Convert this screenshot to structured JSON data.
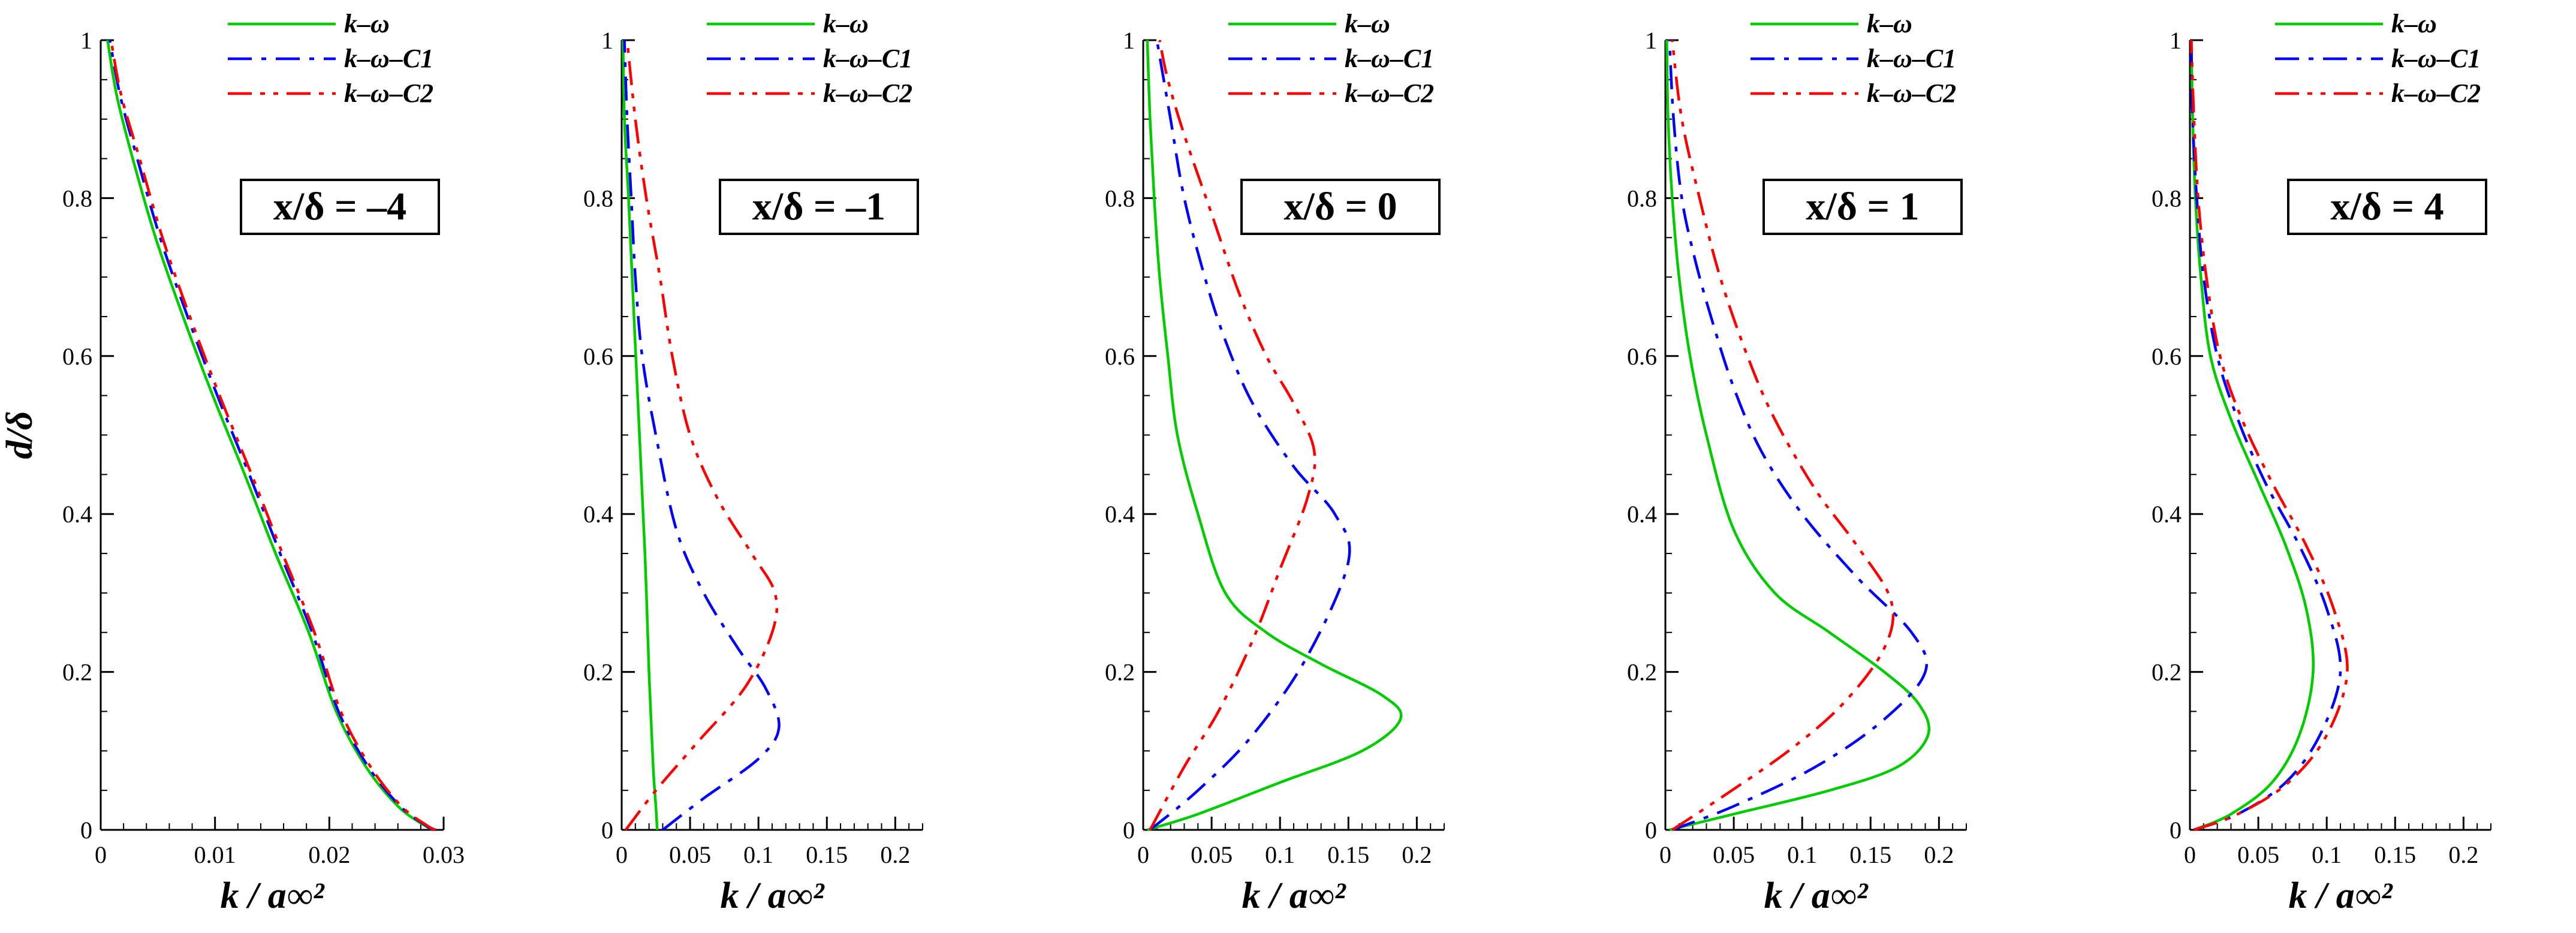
{
  "chart_data": [
    {
      "type": "line",
      "annotation": "x/δ = –4",
      "xlabel": "k / a∞²",
      "ylabel": "d/δ",
      "xlim": [
        0,
        0.03
      ],
      "ylim": [
        0,
        1
      ],
      "xticks": [
        0,
        0.01,
        0.02,
        0.03
      ],
      "xtick_labels": [
        "0",
        "0.01",
        "0.02",
        "0.03"
      ],
      "yticks": [
        0,
        0.2,
        0.4,
        0.6,
        0.8,
        1
      ],
      "ytick_labels": [
        "0",
        "0.2",
        "0.4",
        "0.6",
        "0.8",
        "1"
      ],
      "legend_position": "top-right",
      "series": [
        {
          "name": "k–ω",
          "color": "#00cc00",
          "dash": "solid",
          "points": [
            [
              0.0292,
              0
            ],
            [
              0.0284,
              0.005
            ],
            [
              0.026,
              0.03
            ],
            [
              0.0232,
              0.08
            ],
            [
              0.0206,
              0.15
            ],
            [
              0.0182,
              0.25
            ],
            [
              0.0153,
              0.35
            ],
            [
              0.0126,
              0.45
            ],
            [
              0.0098,
              0.55
            ],
            [
              0.0072,
              0.65
            ],
            [
              0.0048,
              0.75
            ],
            [
              0.0028,
              0.85
            ],
            [
              0.0014,
              0.93
            ],
            [
              0.0006,
              1
            ]
          ]
        },
        {
          "name": "k–ω–C1",
          "color": "#0000ff",
          "dash": "dashdot",
          "points": [
            [
              0.0292,
              0
            ],
            [
              0.0285,
              0.005
            ],
            [
              0.0262,
              0.03
            ],
            [
              0.0234,
              0.08
            ],
            [
              0.0208,
              0.15
            ],
            [
              0.0185,
              0.25
            ],
            [
              0.0157,
              0.35
            ],
            [
              0.013,
              0.45
            ],
            [
              0.0102,
              0.55
            ],
            [
              0.0076,
              0.65
            ],
            [
              0.0052,
              0.75
            ],
            [
              0.0032,
              0.85
            ],
            [
              0.0017,
              0.93
            ],
            [
              0.0008,
              1
            ]
          ]
        },
        {
          "name": "k–ω–C2",
          "color": "#ff0000",
          "dash": "dashdotdot",
          "points": [
            [
              0.0293,
              0
            ],
            [
              0.0286,
              0.005
            ],
            [
              0.0263,
              0.03
            ],
            [
              0.0236,
              0.08
            ],
            [
              0.021,
              0.15
            ],
            [
              0.0187,
              0.25
            ],
            [
              0.0159,
              0.35
            ],
            [
              0.0132,
              0.45
            ],
            [
              0.0104,
              0.55
            ],
            [
              0.0078,
              0.65
            ],
            [
              0.0054,
              0.75
            ],
            [
              0.0034,
              0.85
            ],
            [
              0.0018,
              0.93
            ],
            [
              0.0009,
              1
            ]
          ]
        }
      ]
    },
    {
      "type": "line",
      "annotation": "x/δ = –1",
      "xlabel": "k / a∞²",
      "ylabel": "",
      "xlim": [
        0,
        0.22
      ],
      "ylim": [
        0,
        1
      ],
      "xticks": [
        0,
        0.05,
        0.1,
        0.15,
        0.2
      ],
      "xtick_labels": [
        "0",
        "0.05",
        "0.1",
        "0.15",
        "0.2"
      ],
      "yticks": [
        0,
        0.2,
        0.4,
        0.6,
        0.8,
        1
      ],
      "ytick_labels": [
        "0",
        "0.2",
        "0.4",
        "0.6",
        "0.8",
        "1"
      ],
      "legend_position": "top-right",
      "series": [
        {
          "name": "k–ω",
          "color": "#00cc00",
          "dash": "solid",
          "points": [
            [
              0.026,
              0
            ],
            [
              0.025,
              0.03
            ],
            [
              0.023,
              0.08
            ],
            [
              0.02,
              0.2
            ],
            [
              0.017,
              0.35
            ],
            [
              0.013,
              0.5
            ],
            [
              0.009,
              0.65
            ],
            [
              0.005,
              0.8
            ],
            [
              0.002,
              0.9
            ],
            [
              0.001,
              1
            ]
          ]
        },
        {
          "name": "k–ω–C1",
          "color": "#0000ff",
          "dash": "dashdot",
          "points": [
            [
              0.03,
              0
            ],
            [
              0.06,
              0.04
            ],
            [
              0.1,
              0.09
            ],
            [
              0.115,
              0.13
            ],
            [
              0.105,
              0.18
            ],
            [
              0.085,
              0.23
            ],
            [
              0.06,
              0.3
            ],
            [
              0.04,
              0.38
            ],
            [
              0.025,
              0.5
            ],
            [
              0.015,
              0.6
            ],
            [
              0.01,
              0.7
            ],
            [
              0.007,
              0.8
            ],
            [
              0.004,
              0.9
            ],
            [
              0.002,
              1
            ]
          ]
        },
        {
          "name": "k–ω–C2",
          "color": "#ff0000",
          "dash": "dashdotdot",
          "points": [
            [
              0.003,
              0
            ],
            [
              0.025,
              0.05
            ],
            [
              0.055,
              0.11
            ],
            [
              0.09,
              0.18
            ],
            [
              0.11,
              0.25
            ],
            [
              0.112,
              0.3
            ],
            [
              0.095,
              0.35
            ],
            [
              0.07,
              0.42
            ],
            [
              0.05,
              0.5
            ],
            [
              0.037,
              0.6
            ],
            [
              0.028,
              0.7
            ],
            [
              0.018,
              0.8
            ],
            [
              0.01,
              0.9
            ],
            [
              0.004,
              1
            ]
          ]
        }
      ]
    },
    {
      "type": "line",
      "annotation": "x/δ = 0",
      "xlabel": "k / a∞²",
      "ylabel": "",
      "xlim": [
        0,
        0.22
      ],
      "ylim": [
        0,
        1
      ],
      "xticks": [
        0,
        0.05,
        0.1,
        0.15,
        0.2
      ],
      "xtick_labels": [
        "0",
        "0.05",
        "0.1",
        "0.15",
        "0.2"
      ],
      "yticks": [
        0,
        0.2,
        0.4,
        0.6,
        0.8,
        1
      ],
      "ytick_labels": [
        "0",
        "0.2",
        "0.4",
        "0.6",
        "0.8",
        "1"
      ],
      "legend_position": "top-right",
      "series": [
        {
          "name": "k–ω",
          "color": "#00cc00",
          "dash": "solid",
          "points": [
            [
              0.003,
              0
            ],
            [
              0.04,
              0.02
            ],
            [
              0.1,
              0.06
            ],
            [
              0.16,
              0.1
            ],
            [
              0.188,
              0.14
            ],
            [
              0.175,
              0.17
            ],
            [
              0.13,
              0.21
            ],
            [
              0.09,
              0.25
            ],
            [
              0.06,
              0.3
            ],
            [
              0.04,
              0.4
            ],
            [
              0.025,
              0.5
            ],
            [
              0.018,
              0.6
            ],
            [
              0.012,
              0.7
            ],
            [
              0.008,
              0.8
            ],
            [
              0.005,
              0.9
            ],
            [
              0.003,
              1
            ]
          ]
        },
        {
          "name": "k–ω–C1",
          "color": "#0000ff",
          "dash": "dashdot",
          "points": [
            [
              0.005,
              0
            ],
            [
              0.04,
              0.05
            ],
            [
              0.08,
              0.12
            ],
            [
              0.12,
              0.22
            ],
            [
              0.15,
              0.34
            ],
            [
              0.14,
              0.4
            ],
            [
              0.11,
              0.46
            ],
            [
              0.08,
              0.54
            ],
            [
              0.06,
              0.62
            ],
            [
              0.045,
              0.7
            ],
            [
              0.03,
              0.8
            ],
            [
              0.02,
              0.9
            ],
            [
              0.01,
              1
            ]
          ]
        },
        {
          "name": "k–ω–C2",
          "color": "#ff0000",
          "dash": "dashdotdot",
          "points": [
            [
              0.005,
              0
            ],
            [
              0.03,
              0.08
            ],
            [
              0.055,
              0.15
            ],
            [
              0.08,
              0.24
            ],
            [
              0.1,
              0.33
            ],
            [
              0.12,
              0.42
            ],
            [
              0.125,
              0.48
            ],
            [
              0.11,
              0.54
            ],
            [
              0.09,
              0.6
            ],
            [
              0.07,
              0.68
            ],
            [
              0.05,
              0.78
            ],
            [
              0.03,
              0.88
            ],
            [
              0.018,
              0.95
            ],
            [
              0.012,
              1
            ]
          ]
        }
      ]
    },
    {
      "type": "line",
      "annotation": "x/δ = 1",
      "xlabel": "k / a∞²",
      "ylabel": "",
      "xlim": [
        0,
        0.22
      ],
      "ylim": [
        0,
        1
      ],
      "xticks": [
        0,
        0.05,
        0.1,
        0.15,
        0.2
      ],
      "xtick_labels": [
        "0",
        "0.05",
        "0.1",
        "0.15",
        "0.2"
      ],
      "yticks": [
        0,
        0.2,
        0.4,
        0.6,
        0.8,
        1
      ],
      "ytick_labels": [
        "0",
        "0.2",
        "0.4",
        "0.6",
        "0.8",
        "1"
      ],
      "legend_position": "top-right",
      "series": [
        {
          "name": "k–ω",
          "color": "#00cc00",
          "dash": "solid",
          "points": [
            [
              0.003,
              0
            ],
            [
              0.05,
              0.02
            ],
            [
              0.12,
              0.05
            ],
            [
              0.17,
              0.08
            ],
            [
              0.192,
              0.12
            ],
            [
              0.185,
              0.16
            ],
            [
              0.16,
              0.2
            ],
            [
              0.12,
              0.25
            ],
            [
              0.08,
              0.3
            ],
            [
              0.05,
              0.38
            ],
            [
              0.03,
              0.5
            ],
            [
              0.018,
              0.6
            ],
            [
              0.01,
              0.7
            ],
            [
              0.005,
              0.8
            ],
            [
              0.002,
              0.9
            ],
            [
              0.001,
              1
            ]
          ]
        },
        {
          "name": "k–ω–C1",
          "color": "#0000ff",
          "dash": "dashdot",
          "points": [
            [
              0.005,
              0
            ],
            [
              0.05,
              0.03
            ],
            [
              0.11,
              0.08
            ],
            [
              0.16,
              0.14
            ],
            [
              0.19,
              0.2
            ],
            [
              0.18,
              0.25
            ],
            [
              0.14,
              0.32
            ],
            [
              0.1,
              0.4
            ],
            [
              0.07,
              0.48
            ],
            [
              0.05,
              0.56
            ],
            [
              0.035,
              0.64
            ],
            [
              0.022,
              0.72
            ],
            [
              0.012,
              0.8
            ],
            [
              0.006,
              0.9
            ],
            [
              0.003,
              1
            ]
          ]
        },
        {
          "name": "k–ω–C2",
          "color": "#ff0000",
          "dash": "dashdotdot",
          "points": [
            [
              0.005,
              0
            ],
            [
              0.04,
              0.04
            ],
            [
              0.09,
              0.1
            ],
            [
              0.13,
              0.16
            ],
            [
              0.16,
              0.23
            ],
            [
              0.165,
              0.29
            ],
            [
              0.14,
              0.36
            ],
            [
              0.11,
              0.43
            ],
            [
              0.08,
              0.52
            ],
            [
              0.06,
              0.6
            ],
            [
              0.04,
              0.7
            ],
            [
              0.025,
              0.8
            ],
            [
              0.012,
              0.9
            ],
            [
              0.005,
              1
            ]
          ]
        }
      ]
    },
    {
      "type": "line",
      "annotation": "x/δ = 4",
      "xlabel": "k / a∞²",
      "ylabel": "",
      "xlim": [
        0,
        0.22
      ],
      "ylim": [
        0,
        1
      ],
      "xticks": [
        0,
        0.05,
        0.1,
        0.15,
        0.2
      ],
      "xtick_labels": [
        "0",
        "0.05",
        "0.1",
        "0.15",
        "0.2"
      ],
      "yticks": [
        0,
        0.2,
        0.4,
        0.6,
        0.8,
        1
      ],
      "ytick_labels": [
        "0",
        "0.2",
        "0.4",
        "0.6",
        "0.8",
        "1"
      ],
      "legend_position": "top-right",
      "series": [
        {
          "name": "k–ω",
          "color": "#00cc00",
          "dash": "solid",
          "points": [
            [
              0.003,
              0
            ],
            [
              0.03,
              0.02
            ],
            [
              0.06,
              0.06
            ],
            [
              0.08,
              0.12
            ],
            [
              0.09,
              0.2
            ],
            [
              0.085,
              0.28
            ],
            [
              0.07,
              0.36
            ],
            [
              0.05,
              0.44
            ],
            [
              0.03,
              0.52
            ],
            [
              0.015,
              0.6
            ],
            [
              0.008,
              0.7
            ],
            [
              0.004,
              0.8
            ],
            [
              0.002,
              0.9
            ],
            [
              0.001,
              1
            ]
          ]
        },
        {
          "name": "k–ω–C1",
          "color": "#0000ff",
          "dash": "dashdot",
          "points": [
            [
              0.003,
              0
            ],
            [
              0.035,
              0.02
            ],
            [
              0.07,
              0.06
            ],
            [
              0.095,
              0.12
            ],
            [
              0.11,
              0.2
            ],
            [
              0.1,
              0.28
            ],
            [
              0.08,
              0.36
            ],
            [
              0.055,
              0.44
            ],
            [
              0.035,
              0.52
            ],
            [
              0.02,
              0.6
            ],
            [
              0.01,
              0.7
            ],
            [
              0.005,
              0.8
            ],
            [
              0.002,
              0.9
            ],
            [
              0.001,
              1
            ]
          ]
        },
        {
          "name": "k–ω–C2",
          "color": "#ff0000",
          "dash": "dashdotdot",
          "points": [
            [
              0.003,
              0
            ],
            [
              0.035,
              0.02
            ],
            [
              0.072,
              0.06
            ],
            [
              0.1,
              0.12
            ],
            [
              0.115,
              0.2
            ],
            [
              0.105,
              0.28
            ],
            [
              0.085,
              0.36
            ],
            [
              0.06,
              0.44
            ],
            [
              0.038,
              0.52
            ],
            [
              0.022,
              0.6
            ],
            [
              0.012,
              0.7
            ],
            [
              0.006,
              0.8
            ],
            [
              0.003,
              0.9
            ],
            [
              0.001,
              1
            ]
          ]
        }
      ]
    }
  ]
}
